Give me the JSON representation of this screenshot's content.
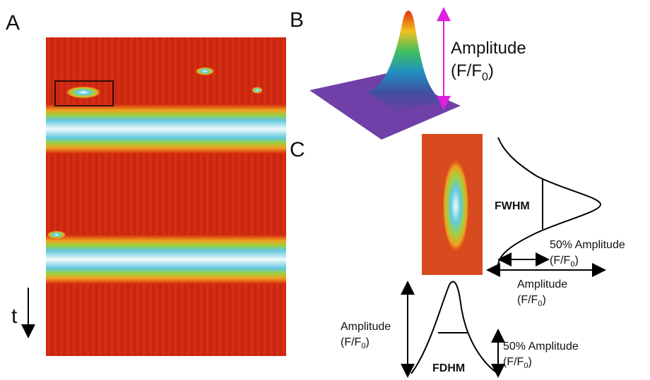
{
  "panels": {
    "a": {
      "label": "A",
      "time_axis": "t"
    },
    "b": {
      "label": "B",
      "amplitude": {
        "name": "Amplitude",
        "unit": [
          "(F/F",
          "0",
          ")"
        ]
      }
    },
    "c": {
      "label": "C",
      "fwhm": "FWHM",
      "fdhm": "FDHM",
      "spatial_half_amplitude": {
        "name": "50% Amplitude",
        "unit": [
          "(F/F",
          "0",
          ")"
        ]
      },
      "spatial_amplitude": {
        "name": "Amplitude",
        "unit": [
          "(F/F",
          "0",
          ")"
        ]
      },
      "temporal_amplitude": {
        "name": "Amplitude",
        "unit": [
          "(F/F",
          "0",
          ")"
        ]
      },
      "temporal_half_amplitude": {
        "name": "50% Amplitude",
        "unit": [
          "(F/F",
          "0",
          ")"
        ]
      }
    }
  }
}
